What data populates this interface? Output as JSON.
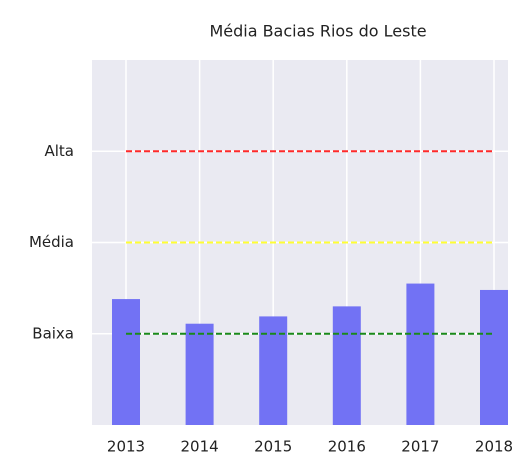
{
  "chart_data": {
    "type": "bar",
    "title": "Média Bacias Rios do Leste",
    "categories": [
      "2013",
      "2014",
      "2015",
      "2016",
      "2017",
      "2018"
    ],
    "values": [
      1.38,
      1.11,
      1.19,
      1.3,
      1.55,
      1.48
    ],
    "color": "#7272f4",
    "ylim": [
      0,
      4
    ],
    "yticks": [
      {
        "value": 1,
        "label": "Baixa"
      },
      {
        "value": 2,
        "label": "Média"
      },
      {
        "value": 3,
        "label": "Alta"
      }
    ],
    "grid": true,
    "reference_lines": [
      {
        "value": 3,
        "color": "#ff2a2a"
      },
      {
        "value": 2,
        "color": "#ffff33"
      },
      {
        "value": 1,
        "color": "#1a8a1a"
      }
    ]
  }
}
